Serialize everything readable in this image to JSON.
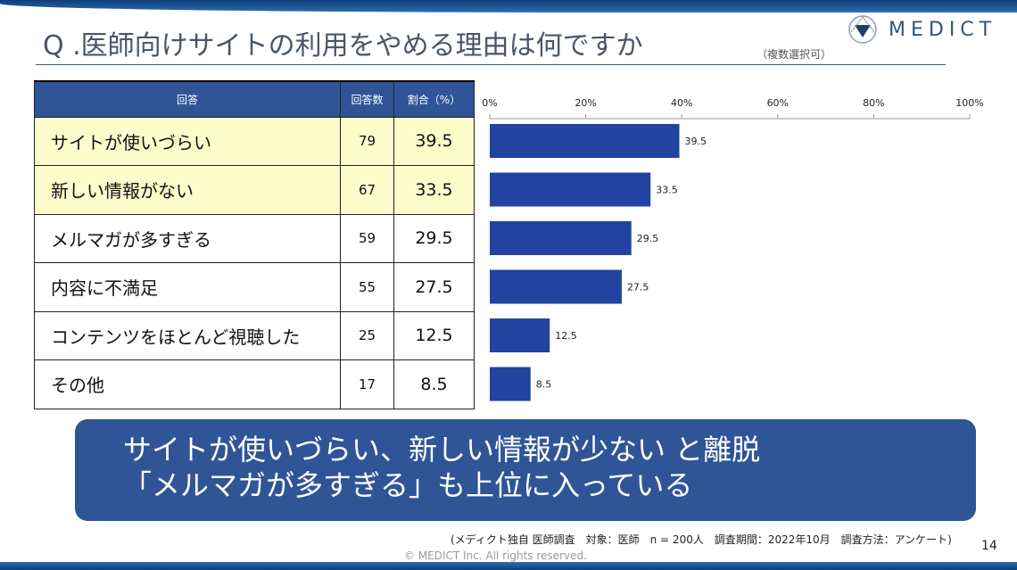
{
  "header": {
    "title": "Q .医師向けサイトの利用をやめる理由は何ですか",
    "multi_select": "（複数選択可）",
    "logo_text": "MEDICT"
  },
  "table": {
    "headers": [
      "回答",
      "回答数",
      "割合（%）"
    ],
    "rows": [
      {
        "answer": "サイトが使いづらい",
        "count": "79",
        "pct": "39.5",
        "highlight": true
      },
      {
        "answer": "新しい情報がない",
        "count": "67",
        "pct": "33.5",
        "highlight": true
      },
      {
        "answer": "メルマガが多すぎる",
        "count": "59",
        "pct": "29.5",
        "highlight": false
      },
      {
        "answer": "内容に不満足",
        "count": "55",
        "pct": "27.5",
        "highlight": false
      },
      {
        "answer": "コンテンツをほとんど視聴した",
        "count": "25",
        "pct": "12.5",
        "highlight": false
      },
      {
        "answer": "その他",
        "count": "17",
        "pct": "8.5",
        "highlight": false
      }
    ]
  },
  "chart_data": {
    "type": "bar",
    "orientation": "horizontal",
    "categories": [
      "サイトが使いづらい",
      "新しい情報がない",
      "メルマガが多すぎる",
      "内容に不満足",
      "コンテンツをほとんど視聴した",
      "その他"
    ],
    "values": [
      39.5,
      33.5,
      29.5,
      27.5,
      12.5,
      8.5
    ],
    "xlim": [
      0,
      100
    ],
    "ticks": [
      "0%",
      "20%",
      "40%",
      "60%",
      "80%",
      "100%"
    ],
    "bar_color": "#2244a0",
    "grid": false
  },
  "callout": {
    "line1": "サイトが使いづらい、新しい情報が少ない と離脱",
    "line2": "「メルマガが多すぎる」も上位に入っている"
  },
  "footer": {
    "note": "(メディクト独自 医師調査　対象：医師　n = 200人　調査期間：2022年10月　調査方法：アンケート)",
    "copyright": "© MEDICT Inc.  All rights reserved.",
    "page": "14"
  }
}
